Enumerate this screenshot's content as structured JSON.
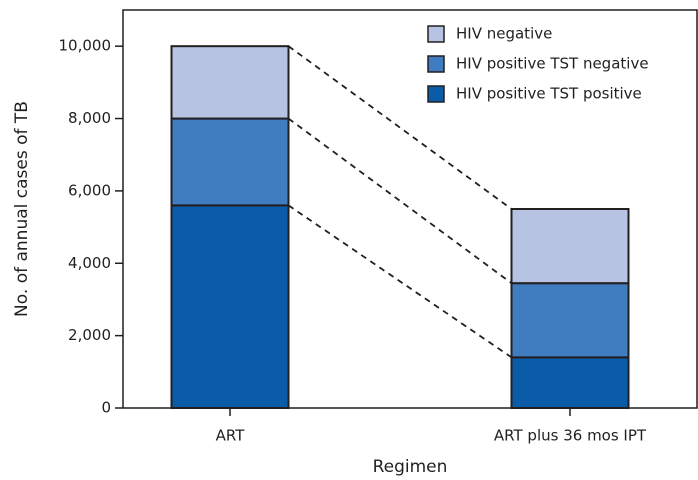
{
  "chart_data": {
    "type": "stacked_bar",
    "x_label": "Regimen",
    "y_label": "No. of annual cases of TB",
    "categories": [
      "ART",
      "ART plus 36 mos IPT"
    ],
    "series": [
      {
        "name": "HIV positive TST positive",
        "color": "#0b5ca8",
        "values": [
          5600,
          1400
        ]
      },
      {
        "name": "HIV positive TST negative",
        "color": "#3f7dc0",
        "values": [
          2400,
          2050
        ]
      },
      {
        "name": "HIV negative",
        "color": "#b6c3e3",
        "values": [
          2000,
          2050
        ]
      }
    ],
    "ylim": [
      0,
      11000
    ],
    "yticks": [
      0,
      {
        "value": 2000,
        "label": "2,000"
      },
      {
        "value": 4000,
        "label": "4,000"
      },
      {
        "value": 6000,
        "label": "6,000"
      },
      {
        "value": 8000,
        "label": "8,000"
      },
      {
        "value": 10000,
        "label": "10,000"
      }
    ],
    "legend": "upper right"
  }
}
